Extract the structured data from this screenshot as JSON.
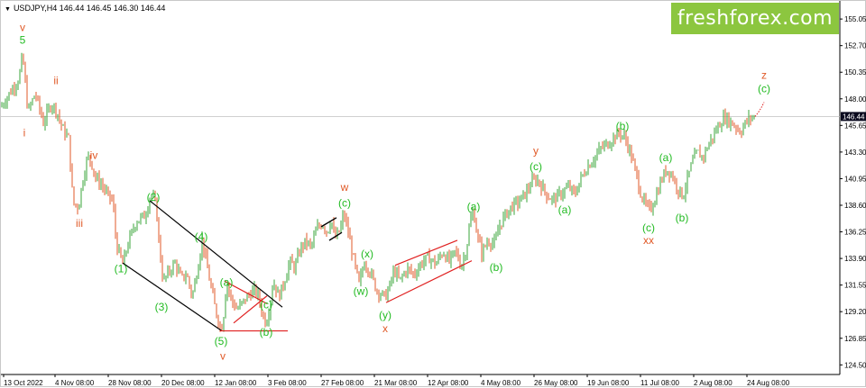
{
  "header": {
    "symbol_label": "USDJPY,H4  146.44 146.45 146.30 146.44"
  },
  "logo": {
    "text": "freshforex.com",
    "color": "#8cc63f"
  },
  "colors": {
    "up": "#3aa53a",
    "down": "#e05a28",
    "wave_green": "#22bb22",
    "wave_orange": "#e05a28",
    "channel_black": "#000000",
    "channel_red": "#e02020",
    "price_tag_bg": "#0a0a1e"
  },
  "chart_data": {
    "type": "candlestick",
    "symbol": "USDJPY",
    "timeframe": "H4",
    "current_price": 146.44,
    "ylim": [
      123.65,
      156.65
    ],
    "x_ticks": [
      "13 Oct 2022",
      "4 Nov 08:00",
      "28 Nov 08:00",
      "20 Dec 08:00",
      "12 Jan 08:00",
      "3 Feb 08:00",
      "27 Feb 08:00",
      "21 Mar 08:00",
      "12 Apr 08:00",
      "4 May 08:00",
      "26 May 08:00",
      "19 Jun 08:00",
      "11 Jul 08:00",
      "2 Aug 08:00",
      "24 Aug 08:00"
    ],
    "y_ticks": [
      "155.05",
      "152.70",
      "150.35",
      "148.00",
      "145.65",
      "143.30",
      "140.95",
      "138.60",
      "136.25",
      "133.90",
      "131.55",
      "129.20",
      "126.85",
      "124.50"
    ],
    "price_path": [
      [
        0,
        147.3
      ],
      [
        20,
        149.8
      ],
      [
        24,
        151.9
      ],
      [
        30,
        146.8
      ],
      [
        38,
        148.5
      ],
      [
        47,
        145.9
      ],
      [
        56,
        147.6
      ],
      [
        62,
        146.9
      ],
      [
        68,
        145.4
      ],
      [
        75,
        144.5
      ],
      [
        80,
        138.8
      ],
      [
        86,
        138.4
      ],
      [
        90,
        140.5
      ],
      [
        96,
        142.9
      ],
      [
        100,
        142.5
      ],
      [
        105,
        141.0
      ],
      [
        112,
        140.4
      ],
      [
        118,
        139.5
      ],
      [
        124,
        139.0
      ],
      [
        128,
        135.1
      ],
      [
        135,
        133.4
      ],
      [
        142,
        135.5
      ],
      [
        150,
        137.2
      ],
      [
        160,
        137.7
      ],
      [
        166,
        139.6
      ],
      [
        172,
        138.6
      ],
      [
        176,
        134.6
      ],
      [
        180,
        131.8
      ],
      [
        186,
        132.7
      ],
      [
        193,
        133.5
      ],
      [
        200,
        132.1
      ],
      [
        206,
        132.5
      ],
      [
        212,
        130.5
      ],
      [
        218,
        133.0
      ],
      [
        223,
        135.6
      ],
      [
        228,
        133.4
      ],
      [
        233,
        131.3
      ],
      [
        238,
        129.3
      ],
      [
        243,
        127.9
      ],
      [
        246,
        128.0
      ],
      [
        250,
        131.9
      ],
      [
        256,
        130.1
      ],
      [
        262,
        129.4
      ],
      [
        268,
        130.0
      ],
      [
        276,
        130.8
      ],
      [
        282,
        131.1
      ],
      [
        286,
        130.4
      ],
      [
        290,
        129.0
      ],
      [
        294,
        128.2
      ],
      [
        298,
        129.8
      ],
      [
        302,
        131.9
      ],
      [
        308,
        130.5
      ],
      [
        314,
        131.8
      ],
      [
        320,
        133.6
      ],
      [
        326,
        133.1
      ],
      [
        332,
        134.8
      ],
      [
        338,
        135.4
      ],
      [
        344,
        134.9
      ],
      [
        350,
        136.5
      ],
      [
        356,
        137.0
      ],
      [
        362,
        136.2
      ],
      [
        366,
        137.5
      ],
      [
        370,
        135.6
      ],
      [
        376,
        136.4
      ],
      [
        380,
        137.9
      ],
      [
        385,
        136.2
      ],
      [
        392,
        133.4
      ],
      [
        397,
        131.6
      ],
      [
        403,
        133.6
      ],
      [
        410,
        132.6
      ],
      [
        416,
        131.2
      ],
      [
        422,
        130.7
      ],
      [
        426,
        130.5
      ],
      [
        430,
        131.2
      ],
      [
        436,
        132.9
      ],
      [
        442,
        131.9
      ],
      [
        450,
        133.0
      ],
      [
        458,
        132.5
      ],
      [
        466,
        133.5
      ],
      [
        474,
        134.0
      ],
      [
        482,
        133.4
      ],
      [
        490,
        134.5
      ],
      [
        497,
        133.6
      ],
      [
        504,
        134.6
      ],
      [
        510,
        133.2
      ],
      [
        516,
        134.7
      ],
      [
        520,
        137.2
      ],
      [
        524,
        138.1
      ],
      [
        528,
        135.9
      ],
      [
        533,
        134.4
      ],
      [
        540,
        135.5
      ],
      [
        548,
        135.2
      ],
      [
        552,
        136.7
      ],
      [
        558,
        137.6
      ],
      [
        566,
        138.5
      ],
      [
        574,
        138.9
      ],
      [
        582,
        139.7
      ],
      [
        588,
        140.6
      ],
      [
        594,
        140.9
      ],
      [
        600,
        140.2
      ],
      [
        606,
        139.4
      ],
      [
        612,
        139.1
      ],
      [
        618,
        139.4
      ],
      [
        624,
        139.9
      ],
      [
        630,
        140.2
      ],
      [
        636,
        139.5
      ],
      [
        642,
        140.8
      ],
      [
        650,
        142.0
      ],
      [
        658,
        142.8
      ],
      [
        666,
        143.7
      ],
      [
        674,
        144.1
      ],
      [
        680,
        144.7
      ],
      [
        686,
        145.0
      ],
      [
        692,
        144.5
      ],
      [
        698,
        143.2
      ],
      [
        704,
        141.4
      ],
      [
        710,
        139.4
      ],
      [
        716,
        138.4
      ],
      [
        720,
        138.2
      ],
      [
        726,
        139.4
      ],
      [
        732,
        140.8
      ],
      [
        738,
        141.8
      ],
      [
        744,
        141.3
      ],
      [
        750,
        140.1
      ],
      [
        756,
        139.4
      ],
      [
        760,
        140.6
      ],
      [
        766,
        142.3
      ],
      [
        772,
        143.3
      ],
      [
        778,
        142.8
      ],
      [
        784,
        143.9
      ],
      [
        790,
        144.8
      ],
      [
        796,
        145.7
      ],
      [
        802,
        146.4
      ],
      [
        808,
        146.0
      ],
      [
        814,
        145.6
      ],
      [
        820,
        145.1
      ],
      [
        824,
        145.7
      ],
      [
        830,
        146.3
      ],
      [
        836,
        146.44
      ]
    ],
    "projection_target_z": 147.7,
    "annotations": [
      {
        "text": "v",
        "color": "orange",
        "price": 154.3
      },
      {
        "text": "5",
        "color": "green",
        "price": 153.2
      },
      {
        "text": "ii",
        "color": "orange",
        "price": 149.6
      },
      {
        "text": "i",
        "color": "orange",
        "price": 145.0
      },
      {
        "text": "iv",
        "color": "orange",
        "price": 143.0
      },
      {
        "text": "iii",
        "color": "orange",
        "price": 137.0
      },
      {
        "text": "(2)",
        "color": "green",
        "price": 139.3
      },
      {
        "text": "(4)",
        "color": "green",
        "price": 135.8
      },
      {
        "text": "(1)",
        "color": "green",
        "price": 133.0
      },
      {
        "text": "(3)",
        "color": "green",
        "price": 129.6
      },
      {
        "text": "(a)",
        "color": "green",
        "price": 131.8
      },
      {
        "text": "(c)",
        "color": "green",
        "price": 129.8
      },
      {
        "text": "(5)",
        "color": "green",
        "price": 126.6
      },
      {
        "text": "(b)",
        "color": "green",
        "price": 127.4
      },
      {
        "text": "v",
        "color": "orange",
        "price": 125.3
      },
      {
        "text": "w",
        "color": "orange",
        "price": 140.2
      },
      {
        "text": "(c)",
        "color": "green",
        "price": 138.8
      },
      {
        "text": "(x)",
        "color": "green",
        "price": 134.3
      },
      {
        "text": "(w)",
        "color": "green",
        "price": 131.0
      },
      {
        "text": "(y)",
        "color": "green",
        "price": 128.9
      },
      {
        "text": "x",
        "color": "orange",
        "price": 127.7
      },
      {
        "text": "(a)",
        "color": "green",
        "price": 138.5
      },
      {
        "text": "(b)",
        "color": "green",
        "price": 133.1
      },
      {
        "text": "y",
        "color": "orange",
        "price": 143.4
      },
      {
        "text": "(c)",
        "color": "green",
        "price": 142.0
      },
      {
        "text": "(a)",
        "color": "green",
        "price": 138.2
      },
      {
        "text": "(b)",
        "color": "green",
        "price": 145.6
      },
      {
        "text": "(c)",
        "color": "green",
        "price": 136.6
      },
      {
        "text": "xx",
        "color": "orange",
        "price": 135.5
      },
      {
        "text": "(a)",
        "color": "green",
        "price": 142.8
      },
      {
        "text": "(b)",
        "color": "green",
        "price": 137.5
      },
      {
        "text": "z",
        "color": "orange",
        "price": 150.1
      },
      {
        "text": "(c)",
        "color": "green",
        "price": 148.9
      }
    ]
  }
}
